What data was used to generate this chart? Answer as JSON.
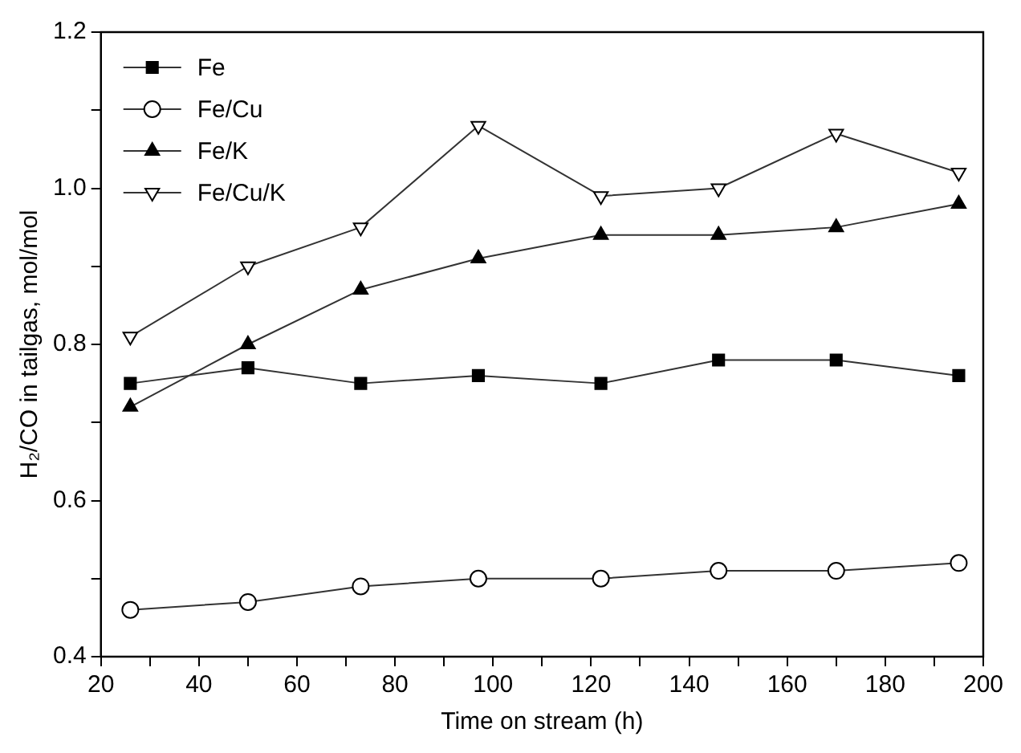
{
  "chart_data": {
    "type": "line",
    "xlabel": "Time on stream (h)",
    "ylabel": "H₂/CO in tailgas, mol/mol",
    "x": [
      26,
      50,
      73,
      97,
      122,
      146,
      170,
      195
    ],
    "series": [
      {
        "name": "Fe",
        "color": "#000000",
        "marker": "square",
        "values": [
          0.75,
          0.77,
          0.75,
          0.76,
          0.75,
          0.78,
          0.78,
          0.76
        ]
      },
      {
        "name": "Fe/Cu",
        "color": "#ffffff",
        "marker": "circle",
        "values": [
          0.46,
          0.47,
          0.49,
          0.5,
          0.5,
          0.51,
          0.51,
          0.52
        ]
      },
      {
        "name": "Fe/K",
        "color": "#000000",
        "marker": "triangle",
        "values": [
          0.72,
          0.8,
          0.87,
          0.91,
          0.94,
          0.94,
          0.95,
          0.98
        ]
      },
      {
        "name": "Fe/Cu/K",
        "color": "#ffffff",
        "marker": "triangle-down",
        "values": [
          0.81,
          0.9,
          0.95,
          1.08,
          0.99,
          1.0,
          1.07,
          1.02
        ]
      }
    ],
    "xlim": [
      20,
      200
    ],
    "xticks": [
      20,
      {
        "value": 30,
        "label": null
      },
      40,
      {
        "value": 50,
        "label": null
      },
      60,
      {
        "value": 70,
        "label": null
      },
      80,
      {
        "value": 90,
        "label": null
      },
      100,
      {
        "value": 110,
        "label": null
      },
      120,
      {
        "value": 130,
        "label": null
      },
      140,
      {
        "value": 150,
        "label": null
      },
      160,
      {
        "value": 170,
        "label": null
      },
      180,
      {
        "value": 190,
        "label": null
      },
      200
    ],
    "ylim": [
      0.4,
      1.2
    ],
    "yticks": [
      {
        "value": 0.4,
        "label": "0.4"
      },
      {
        "value": 0.5,
        "label": null
      },
      {
        "value": 0.6,
        "label": "0.6"
      },
      {
        "value": 0.7,
        "label": null
      },
      {
        "value": 0.8,
        "label": "0.8"
      },
      {
        "value": 0.9,
        "label": null
      },
      {
        "value": 1.0,
        "label": "1.0"
      },
      {
        "value": 1.1,
        "label": null
      },
      {
        "value": 1.2,
        "label": "1.2"
      }
    ],
    "grid": false,
    "legend": "top left",
    "line_style": "solid"
  }
}
